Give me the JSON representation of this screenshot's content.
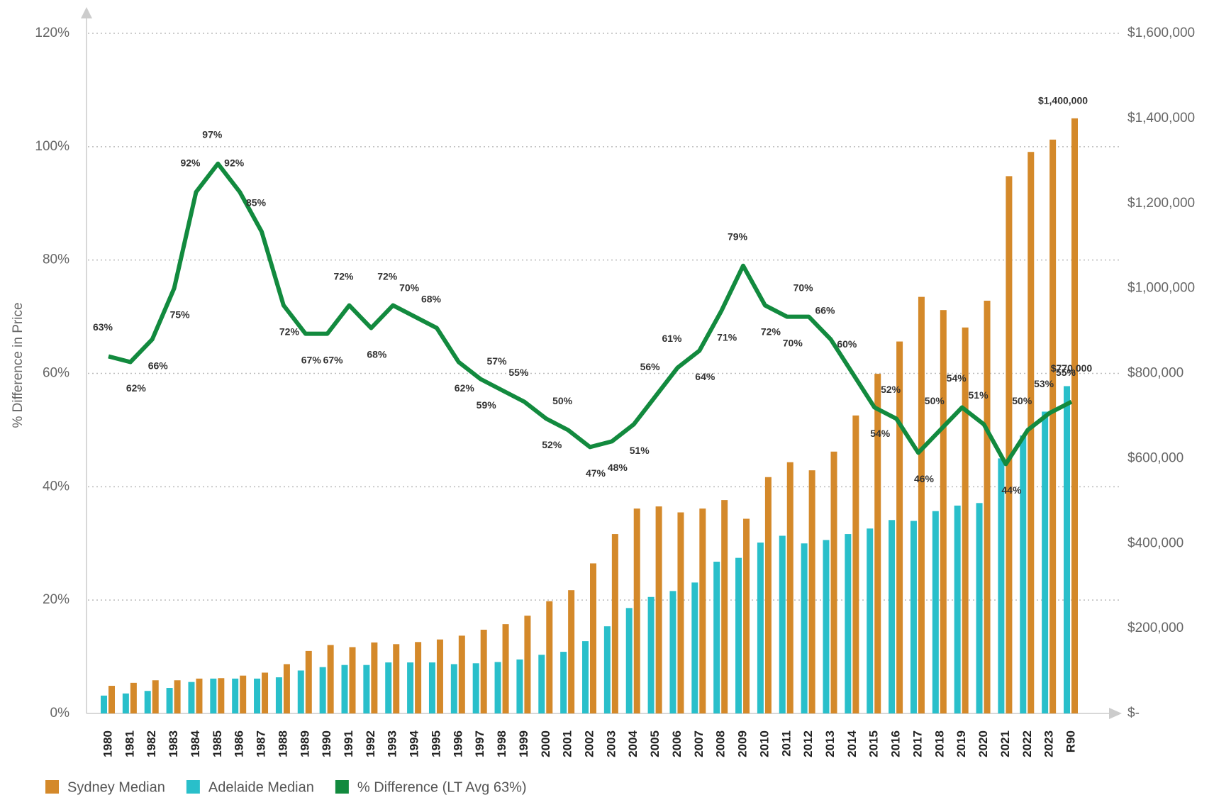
{
  "chart_data": {
    "type": "bar-line",
    "y_label": "% Difference in Price",
    "categories": [
      "1980",
      "1981",
      "1982",
      "1983",
      "1984",
      "1985",
      "1986",
      "1987",
      "1988",
      "1989",
      "1990",
      "1991",
      "1992",
      "1993",
      "1994",
      "1995",
      "1996",
      "1997",
      "1998",
      "1999",
      "2000",
      "2001",
      "2002",
      "2003",
      "2004",
      "2005",
      "2006",
      "2007",
      "2008",
      "2009",
      "2010",
      "2011",
      "2012",
      "2013",
      "2014",
      "2015",
      "2016",
      "2017",
      "2018",
      "2019",
      "2020",
      "2021",
      "2022",
      "2023",
      "R90"
    ],
    "series": [
      {
        "name": "Sydney Median",
        "color": "#d4892a",
        "axis": "y2",
        "values": [
          65000,
          72000,
          78000,
          78000,
          82000,
          83000,
          89000,
          96000,
          116000,
          147000,
          161000,
          156000,
          167000,
          163000,
          168000,
          174000,
          183000,
          197000,
          210000,
          230000,
          264000,
          290000,
          353000,
          422000,
          482000,
          487000,
          473000,
          482000,
          502000,
          458000,
          556000,
          591000,
          572000,
          616000,
          701000,
          799000,
          875000,
          980000,
          949000,
          908000,
          971000,
          1264000,
          1321000,
          1350000,
          1400000
        ],
        "value_labels": [
          null,
          null,
          null,
          null,
          null,
          null,
          null,
          null,
          null,
          null,
          null,
          null,
          null,
          null,
          null,
          null,
          null,
          null,
          null,
          null,
          null,
          null,
          null,
          null,
          null,
          null,
          null,
          null,
          null,
          null,
          null,
          null,
          null,
          null,
          null,
          null,
          null,
          null,
          null,
          null,
          null,
          null,
          null,
          null,
          "$1,400,000"
        ]
      },
      {
        "name": "Adelaide Median",
        "color": "#29bfca",
        "axis": "y2",
        "values": [
          42000,
          47000,
          53000,
          60000,
          74000,
          82000,
          82000,
          82000,
          85000,
          101000,
          109000,
          114000,
          114000,
          120000,
          120000,
          120000,
          116000,
          118000,
          121000,
          127000,
          138000,
          145000,
          170000,
          205000,
          248000,
          274000,
          288000,
          308000,
          357000,
          366000,
          402000,
          418000,
          400000,
          408000,
          422000,
          435000,
          455000,
          453000,
          476000,
          489000,
          495000,
          600000,
          654000,
          710000,
          770000
        ],
        "value_labels": [
          null,
          null,
          null,
          null,
          null,
          null,
          null,
          null,
          null,
          null,
          null,
          null,
          null,
          null,
          null,
          null,
          null,
          null,
          null,
          null,
          null,
          null,
          null,
          null,
          null,
          null,
          null,
          null,
          null,
          null,
          null,
          null,
          null,
          null,
          null,
          null,
          null,
          null,
          null,
          null,
          null,
          null,
          null,
          null,
          "$770,000"
        ]
      },
      {
        "name": "% Difference (LT Avg 63%)",
        "color": "#128a3e",
        "type": "line",
        "values": [
          63,
          62,
          66,
          75,
          92,
          97,
          92,
          85,
          72,
          67,
          67,
          72,
          68,
          72,
          70,
          68,
          62,
          59,
          57,
          55,
          52,
          50,
          47,
          48,
          51,
          56,
          61,
          64,
          71,
          79,
          72,
          70,
          70,
          66,
          60,
          54,
          52,
          46,
          50,
          54,
          51,
          44,
          50,
          53,
          55
        ],
        "value_labels": [
          "63%",
          "62%",
          "66%",
          "75%",
          "92%",
          "97%",
          "92%",
          "85%",
          "72%",
          "67%",
          "67%",
          "72%",
          "68%",
          "72%",
          "70%",
          "68%",
          "62%",
          "59%",
          "57%",
          "55%",
          "52%",
          "50%",
          "47%",
          "48%",
          "51%",
          "56%",
          "61%",
          "64%",
          "71%",
          "79%",
          "72%",
          "70%",
          "70%",
          "66%",
          "60%",
          "54%",
          "52%",
          "46%",
          "50%",
          "54%",
          "51%",
          "44%",
          "50%",
          "53%",
          "55%"
        ]
      }
    ],
    "ylim": [
      0,
      120
    ],
    "yticks": [
      {
        "value": 0,
        "label": "0%"
      },
      {
        "value": 20,
        "label": "20%"
      },
      {
        "value": 40,
        "label": "40%"
      },
      {
        "value": 60,
        "label": "60%"
      },
      {
        "value": 80,
        "label": "80%"
      },
      {
        "value": 100,
        "label": "100%"
      },
      {
        "value": 120,
        "label": "120%"
      }
    ],
    "y2lim": [
      0,
      1600000
    ],
    "y2ticks": [
      {
        "value": 0,
        "label": "$-"
      },
      {
        "value": 200000,
        "label": "$200,000"
      },
      {
        "value": 400000,
        "label": "$400,000"
      },
      {
        "value": 600000,
        "label": "$600,000"
      },
      {
        "value": 800000,
        "label": "$800,000"
      },
      {
        "value": 1000000,
        "label": "$1,000,000"
      },
      {
        "value": 1200000,
        "label": "$1,200,000"
      },
      {
        "value": 1400000,
        "label": "$1,400,000"
      },
      {
        "value": 1600000,
        "label": "$1,600,000"
      }
    ],
    "grid": true,
    "legend": "bottom-left"
  }
}
